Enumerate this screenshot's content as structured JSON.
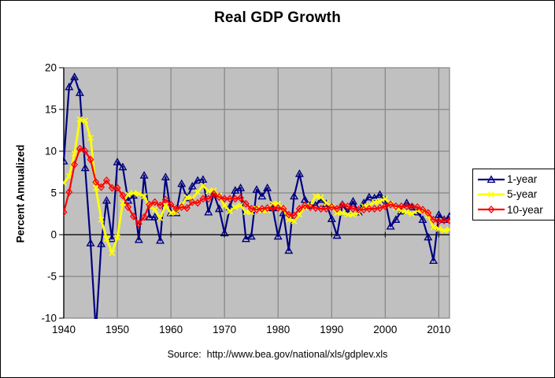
{
  "window": {
    "background": "#FFFFFF",
    "border_color": "#000000"
  },
  "chart_data": {
    "type": "line",
    "title": "Real GDP Growth",
    "ylabel": "Percent Annualized",
    "source_note": "Source:  http://www.bea.gov/national/xls/gdplev.xls",
    "xlim": [
      1940,
      2012
    ],
    "ylim": [
      -10,
      20
    ],
    "y_ticks": [
      20,
      15,
      10,
      5,
      0,
      -5,
      -10
    ],
    "x_tick_labels": [
      1940,
      1950,
      1960,
      1970,
      1980,
      1990,
      2000,
      2010
    ],
    "grid": true,
    "plot_bg": "#C0C0C0",
    "grid_color": "#858585",
    "axis_color": "#000000",
    "legend_position": "right",
    "x_years": [
      1940,
      1941,
      1942,
      1943,
      1944,
      1945,
      1946,
      1947,
      1948,
      1949,
      1950,
      1951,
      1952,
      1953,
      1954,
      1955,
      1956,
      1957,
      1958,
      1959,
      1960,
      1961,
      1962,
      1963,
      1964,
      1965,
      1966,
      1967,
      1968,
      1969,
      1970,
      1971,
      1972,
      1973,
      1974,
      1975,
      1976,
      1977,
      1978,
      1979,
      1980,
      1981,
      1982,
      1983,
      1984,
      1985,
      1986,
      1987,
      1988,
      1989,
      1990,
      1991,
      1992,
      1993,
      1994,
      1995,
      1996,
      1997,
      1998,
      1999,
      2000,
      2001,
      2002,
      2003,
      2004,
      2005,
      2006,
      2007,
      2008,
      2009,
      2010,
      2011,
      2012
    ],
    "series": [
      {
        "name": "1-year",
        "color": "#000080",
        "marker": "triangle",
        "values": [
          8.8,
          17.7,
          18.9,
          17.0,
          8.0,
          -1.0,
          -11.6,
          -1.1,
          4.1,
          -0.5,
          8.7,
          8.1,
          4.1,
          4.7,
          -0.6,
          7.1,
          2.1,
          2.1,
          -0.7,
          6.9,
          2.6,
          2.6,
          6.1,
          4.4,
          5.8,
          6.5,
          6.6,
          2.7,
          4.9,
          3.1,
          0.2,
          3.3,
          5.3,
          5.6,
          -0.5,
          -0.2,
          5.4,
          4.6,
          5.6,
          3.2,
          -0.2,
          2.6,
          -1.9,
          4.6,
          7.3,
          4.2,
          3.5,
          3.5,
          4.2,
          3.7,
          1.9,
          -0.1,
          3.6,
          2.7,
          4.0,
          2.7,
          3.8,
          4.5,
          4.4,
          4.8,
          4.1,
          1.0,
          1.8,
          2.8,
          3.8,
          3.3,
          2.7,
          1.8,
          -0.3,
          -3.1,
          2.4,
          1.8,
          2.2
        ]
      },
      {
        "name": "5-year",
        "color": "#FFFF00",
        "marker": "x",
        "values": [
          6.2,
          7.0,
          9.7,
          13.8,
          13.7,
          11.6,
          5.6,
          1.8,
          -0.5,
          -2.2,
          -0.3,
          3.8,
          4.8,
          5.0,
          4.9,
          4.6,
          3.4,
          3.0,
          2.0,
          3.5,
          2.6,
          2.7,
          3.5,
          4.5,
          4.3,
          5.1,
          5.9,
          5.2,
          5.3,
          4.7,
          3.5,
          2.8,
          3.3,
          3.5,
          2.7,
          2.7,
          3.1,
          2.9,
          2.9,
          3.7,
          3.7,
          3.1,
          1.8,
          1.6,
          2.4,
          3.3,
          3.5,
          4.6,
          4.5,
          3.8,
          3.4,
          2.6,
          2.6,
          2.4,
          2.4,
          2.6,
          3.4,
          3.5,
          3.9,
          4.0,
          4.3,
          3.7,
          3.2,
          2.9,
          2.7,
          2.5,
          2.9,
          2.9,
          2.3,
          0.9,
          0.7,
          0.5,
          0.6
        ]
      },
      {
        "name": "10-year",
        "color": "#FF0000",
        "marker": "diamond",
        "values": [
          2.7,
          5.1,
          8.4,
          10.3,
          10.0,
          9.0,
          6.3,
          5.7,
          6.5,
          5.6,
          5.6,
          4.7,
          3.3,
          2.2,
          1.3,
          2.1,
          3.6,
          3.9,
          3.5,
          4.2,
          3.6,
          3.1,
          3.3,
          3.2,
          3.9,
          3.8,
          4.3,
          4.3,
          4.9,
          4.5,
          4.3,
          4.3,
          4.3,
          4.4,
          3.7,
          3.1,
          3.0,
          3.1,
          3.2,
          3.2,
          3.2,
          3.1,
          2.4,
          2.3,
          3.1,
          3.5,
          3.3,
          3.2,
          3.1,
          3.1,
          3.3,
          3.1,
          3.6,
          3.4,
          3.1,
          3.0,
          3.0,
          3.1,
          3.1,
          3.2,
          3.4,
          3.6,
          3.4,
          3.4,
          3.4,
          3.4,
          3.3,
          3.0,
          2.6,
          1.8,
          1.6,
          1.7,
          1.7
        ]
      }
    ]
  }
}
